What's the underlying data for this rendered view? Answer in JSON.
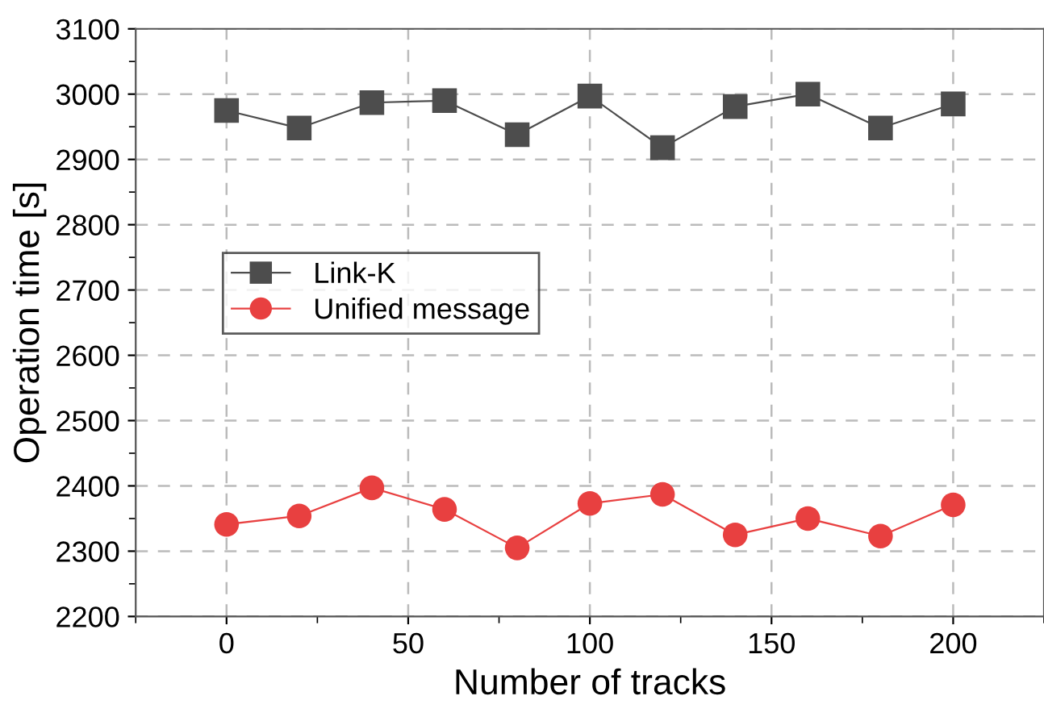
{
  "chart_data": {
    "type": "line",
    "xlabel": "Number of tracks",
    "ylabel": "Operation time [s]",
    "x": [
      0,
      20,
      40,
      60,
      80,
      100,
      120,
      140,
      160,
      180,
      200
    ],
    "series": [
      {
        "name": "Link-K",
        "color": "#4d4d4d",
        "marker": "square",
        "values": [
          2975,
          2948,
          2987,
          2990,
          2938,
          2997,
          2918,
          2981,
          3000,
          2948,
          2985
        ]
      },
      {
        "name": "Unified message",
        "color": "#e84040",
        "marker": "circle",
        "values": [
          2341,
          2354,
          2397,
          2364,
          2305,
          2373,
          2387,
          2325,
          2350,
          2323,
          2371
        ]
      }
    ],
    "xlim": [
      -25,
      225
    ],
    "xticks": [
      0,
      50,
      100,
      150,
      200
    ],
    "ylim": [
      2200,
      3100
    ],
    "yticks": [
      2200,
      2300,
      2400,
      2500,
      2600,
      2700,
      2800,
      2900,
      3000,
      3100
    ],
    "grid": true,
    "legend": "center left",
    "line_style": "solid"
  }
}
